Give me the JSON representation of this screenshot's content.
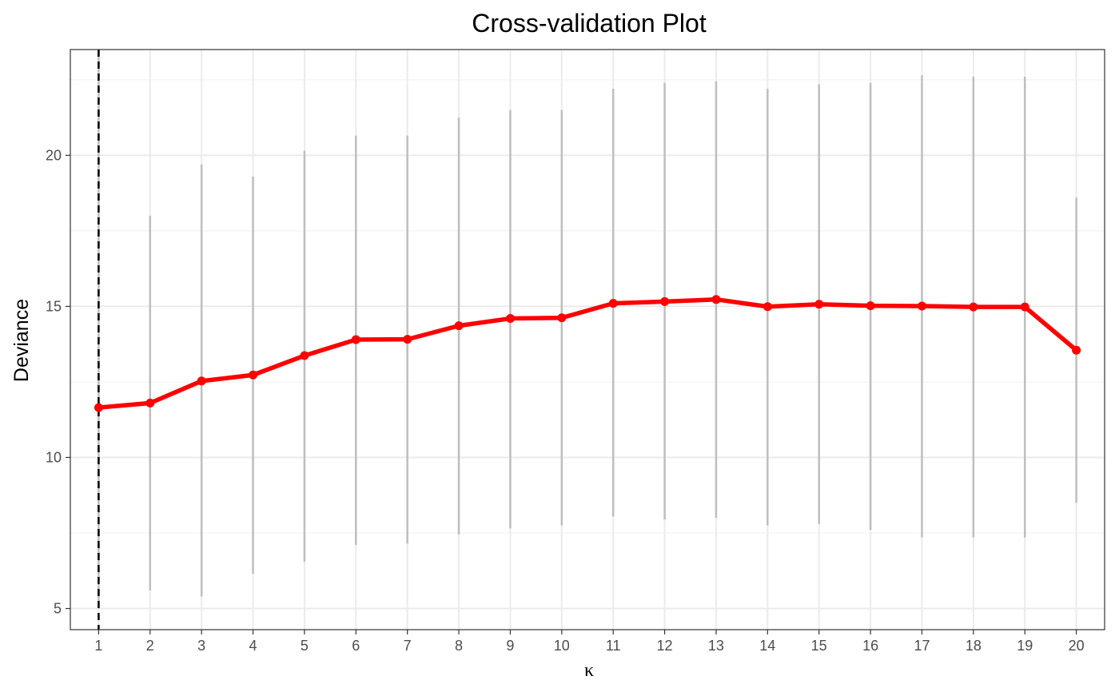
{
  "chart_data": {
    "type": "line",
    "title": "Cross-validation Plot",
    "xlabel": "κ",
    "ylabel": "Deviance",
    "x": [
      1,
      2,
      3,
      4,
      5,
      6,
      7,
      8,
      9,
      10,
      11,
      12,
      13,
      14,
      15,
      16,
      17,
      18,
      19,
      20
    ],
    "series": [
      {
        "values": [
          11.65,
          11.8,
          12.53,
          12.73,
          13.37,
          13.9,
          13.91,
          14.36,
          14.6,
          14.62,
          15.1,
          15.16,
          15.23,
          14.99,
          15.07,
          15.02,
          15.01,
          14.98,
          14.98,
          13.55
        ],
        "lower": [
          5.0,
          5.6,
          5.4,
          6.15,
          6.55,
          7.1,
          7.15,
          7.45,
          7.65,
          7.75,
          8.05,
          7.95,
          8.0,
          7.75,
          7.8,
          7.6,
          7.35,
          7.35,
          7.35,
          8.5
        ],
        "upper": [
          23.5,
          18.0,
          19.7,
          19.3,
          20.15,
          20.65,
          20.65,
          21.25,
          21.5,
          21.5,
          22.2,
          22.4,
          22.45,
          22.2,
          22.35,
          22.4,
          22.65,
          22.6,
          22.6,
          18.6
        ]
      }
    ],
    "reference_line_x": 1,
    "xlim": [
      0.45,
      20.55
    ],
    "ylim": [
      4.3,
      23.5
    ],
    "yticks": [
      5,
      10,
      15,
      20
    ],
    "grid": true,
    "colors": {
      "line": "#ff0000",
      "errorbar": "#bebebe",
      "reference": "#000000",
      "grid": "#ebebeb",
      "panel_border": "#333333"
    }
  }
}
